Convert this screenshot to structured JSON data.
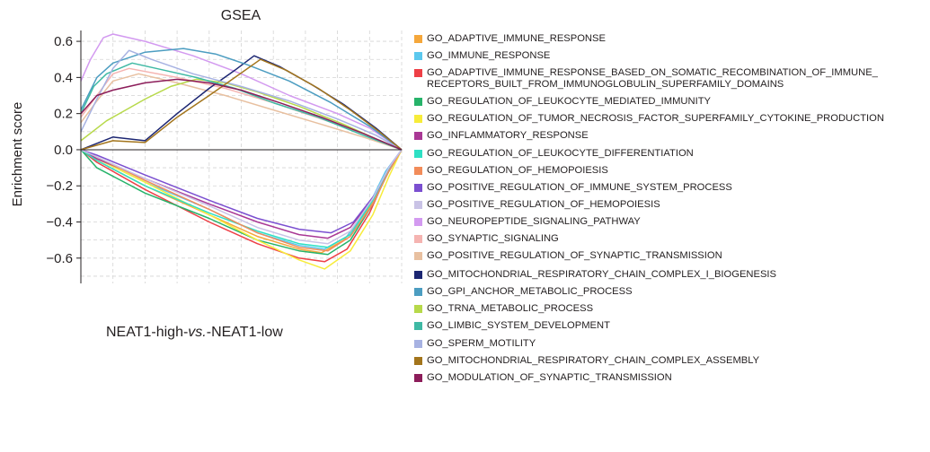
{
  "chart_data": {
    "type": "line",
    "title": "GSEA",
    "xlabel": "",
    "ylabel": "Enrichment score",
    "ylim": [
      -0.74,
      0.66
    ],
    "yticks": [
      -0.6,
      -0.4,
      -0.2,
      0.0,
      0.2,
      0.4,
      0.6
    ],
    "ytick_labels": [
      "−0.6",
      "−0.4",
      "−0.2",
      "0.0",
      "0.2",
      "0.4",
      "0.6"
    ],
    "x_range": [
      0,
      1
    ],
    "grid": true,
    "legend_position": "right",
    "comparison": {
      "before": "NEAT1-high-",
      "italic": "vs.",
      "after": "-NEAT1-low"
    },
    "series": [
      {
        "name": "GO_ADAPTIVE_IMMUNE_RESPONSE",
        "color": "#f5a73b",
        "points": [
          [
            0,
            0
          ],
          [
            0.05,
            -0.06
          ],
          [
            0.2,
            -0.2
          ],
          [
            0.4,
            -0.36
          ],
          [
            0.55,
            -0.48
          ],
          [
            0.68,
            -0.55
          ],
          [
            0.75,
            -0.57
          ],
          [
            0.82,
            -0.5
          ],
          [
            0.9,
            -0.32
          ],
          [
            0.95,
            -0.14
          ],
          [
            1,
            0
          ]
        ]
      },
      {
        "name": "GO_IMMUNE_RESPONSE",
        "color": "#5bc8ee",
        "points": [
          [
            0,
            0
          ],
          [
            0.05,
            -0.05
          ],
          [
            0.2,
            -0.18
          ],
          [
            0.4,
            -0.33
          ],
          [
            0.55,
            -0.46
          ],
          [
            0.68,
            -0.53
          ],
          [
            0.76,
            -0.55
          ],
          [
            0.83,
            -0.48
          ],
          [
            0.9,
            -0.3
          ],
          [
            0.95,
            -0.12
          ],
          [
            1,
            0
          ]
        ]
      },
      {
        "name": "GO_ADAPTIVE_IMMUNE_RESPONSE_BASED_ON_SOMATIC_RECOMBINATION_OF_IMMUNE_\nRECEPTORS_BUILT_FROM_IMMUNOGLOBULIN_SUPERFAMILY_DOMAINS",
        "color": "#ee3f46",
        "points": [
          [
            0,
            0
          ],
          [
            0.05,
            -0.07
          ],
          [
            0.2,
            -0.22
          ],
          [
            0.4,
            -0.4
          ],
          [
            0.55,
            -0.52
          ],
          [
            0.68,
            -0.6
          ],
          [
            0.76,
            -0.62
          ],
          [
            0.83,
            -0.55
          ],
          [
            0.9,
            -0.35
          ],
          [
            0.95,
            -0.15
          ],
          [
            1,
            0
          ]
        ]
      },
      {
        "name": "GO_REGULATION_OF_LEUKOCYTE_MEDIATED_IMMUNITY",
        "color": "#27b36a",
        "points": [
          [
            0,
            0
          ],
          [
            0.05,
            -0.1
          ],
          [
            0.2,
            -0.24
          ],
          [
            0.4,
            -0.38
          ],
          [
            0.55,
            -0.5
          ],
          [
            0.68,
            -0.56
          ],
          [
            0.77,
            -0.58
          ],
          [
            0.84,
            -0.5
          ],
          [
            0.91,
            -0.3
          ],
          [
            0.96,
            -0.12
          ],
          [
            1,
            0
          ]
        ]
      },
      {
        "name": "GO_REGULATION_OF_TUMOR_NECROSIS_FACTOR_SUPERFAMILY_CYTOKINE_PRODUCTION",
        "color": "#f7ec3a",
        "points": [
          [
            0,
            0
          ],
          [
            0.05,
            -0.05
          ],
          [
            0.2,
            -0.18
          ],
          [
            0.4,
            -0.36
          ],
          [
            0.55,
            -0.5
          ],
          [
            0.68,
            -0.61
          ],
          [
            0.76,
            -0.66
          ],
          [
            0.84,
            -0.56
          ],
          [
            0.91,
            -0.36
          ],
          [
            0.96,
            -0.15
          ],
          [
            1,
            0
          ]
        ]
      },
      {
        "name": "GO_INFLAMMATORY_RESPONSE",
        "color": "#a93895",
        "points": [
          [
            0,
            0
          ],
          [
            0.05,
            -0.05
          ],
          [
            0.2,
            -0.16
          ],
          [
            0.4,
            -0.3
          ],
          [
            0.55,
            -0.4
          ],
          [
            0.68,
            -0.47
          ],
          [
            0.77,
            -0.49
          ],
          [
            0.84,
            -0.43
          ],
          [
            0.91,
            -0.27
          ],
          [
            0.96,
            -0.11
          ],
          [
            1,
            0
          ]
        ]
      },
      {
        "name": "GO_REGULATION_OF_LEUKOCYTE_DIFFERENTIATION",
        "color": "#2ee0c4",
        "points": [
          [
            0,
            0
          ],
          [
            0.05,
            -0.06
          ],
          [
            0.2,
            -0.2
          ],
          [
            0.4,
            -0.35
          ],
          [
            0.55,
            -0.45
          ],
          [
            0.68,
            -0.52
          ],
          [
            0.77,
            -0.54
          ],
          [
            0.84,
            -0.47
          ],
          [
            0.91,
            -0.28
          ],
          [
            0.96,
            -0.11
          ],
          [
            1,
            0
          ]
        ]
      },
      {
        "name": "GO_REGULATION_OF_HEMOPOIESIS",
        "color": "#f28c5a",
        "points": [
          [
            0,
            0
          ],
          [
            0.05,
            -0.04
          ],
          [
            0.2,
            -0.17
          ],
          [
            0.4,
            -0.33
          ],
          [
            0.55,
            -0.46
          ],
          [
            0.68,
            -0.54
          ],
          [
            0.77,
            -0.56
          ],
          [
            0.84,
            -0.48
          ],
          [
            0.91,
            -0.3
          ],
          [
            0.96,
            -0.12
          ],
          [
            1,
            0
          ]
        ]
      },
      {
        "name": "GO_POSITIVE_REGULATION_OF_IMMUNE_SYSTEM_PROCESS",
        "color": "#7b4fd0",
        "points": [
          [
            0,
            0
          ],
          [
            0.05,
            -0.03
          ],
          [
            0.2,
            -0.14
          ],
          [
            0.4,
            -0.28
          ],
          [
            0.55,
            -0.38
          ],
          [
            0.68,
            -0.44
          ],
          [
            0.78,
            -0.46
          ],
          [
            0.85,
            -0.4
          ],
          [
            0.92,
            -0.24
          ],
          [
            0.96,
            -0.1
          ],
          [
            1,
            0
          ]
        ]
      },
      {
        "name": "GO_POSITIVE_REGULATION_OF_HEMOPOIESIS",
        "color": "#c9c3e6",
        "points": [
          [
            0,
            0
          ],
          [
            0.05,
            -0.04
          ],
          [
            0.2,
            -0.16
          ],
          [
            0.4,
            -0.31
          ],
          [
            0.55,
            -0.43
          ],
          [
            0.68,
            -0.5
          ],
          [
            0.77,
            -0.52
          ],
          [
            0.84,
            -0.45
          ],
          [
            0.91,
            -0.27
          ],
          [
            0.96,
            -0.1
          ],
          [
            1,
            0
          ]
        ]
      },
      {
        "name": "GO_NEUROPEPTIDE_SIGNALING_PATHWAY",
        "color": "#d39af0",
        "points": [
          [
            0,
            0.38
          ],
          [
            0.03,
            0.5
          ],
          [
            0.07,
            0.62
          ],
          [
            0.1,
            0.64
          ],
          [
            0.2,
            0.6
          ],
          [
            0.35,
            0.52
          ],
          [
            0.5,
            0.42
          ],
          [
            0.65,
            0.3
          ],
          [
            0.8,
            0.2
          ],
          [
            0.9,
            0.12
          ],
          [
            1,
            0
          ]
        ]
      },
      {
        "name": "GO_SYNAPTIC_SIGNALING",
        "color": "#f5b4b1",
        "points": [
          [
            0,
            0.18
          ],
          [
            0.05,
            0.3
          ],
          [
            0.1,
            0.42
          ],
          [
            0.15,
            0.45
          ],
          [
            0.3,
            0.4
          ],
          [
            0.45,
            0.34
          ],
          [
            0.6,
            0.26
          ],
          [
            0.75,
            0.17
          ],
          [
            0.88,
            0.09
          ],
          [
            1,
            0
          ]
        ]
      },
      {
        "name": "GO_POSITIVE_REGULATION_OF_SYNAPTIC_TRANSMISSION",
        "color": "#e8c0a0",
        "points": [
          [
            0,
            0.15
          ],
          [
            0.05,
            0.27
          ],
          [
            0.1,
            0.38
          ],
          [
            0.18,
            0.42
          ],
          [
            0.3,
            0.37
          ],
          [
            0.45,
            0.3
          ],
          [
            0.6,
            0.22
          ],
          [
            0.75,
            0.14
          ],
          [
            0.88,
            0.07
          ],
          [
            1,
            0
          ]
        ]
      },
      {
        "name": "GO_MITOCHONDRIAL_RESPIRATORY_CHAIN_COMPLEX_I_BIOGENESIS",
        "color": "#1c2672",
        "points": [
          [
            0,
            0
          ],
          [
            0.1,
            0.07
          ],
          [
            0.2,
            0.05
          ],
          [
            0.3,
            0.2
          ],
          [
            0.4,
            0.34
          ],
          [
            0.48,
            0.44
          ],
          [
            0.54,
            0.52
          ],
          [
            0.62,
            0.46
          ],
          [
            0.72,
            0.36
          ],
          [
            0.82,
            0.25
          ],
          [
            0.92,
            0.12
          ],
          [
            1,
            0
          ]
        ]
      },
      {
        "name": "GO_GPI_ANCHOR_METABOLIC_PROCESS",
        "color": "#4c9dc1",
        "points": [
          [
            0,
            0.22
          ],
          [
            0.05,
            0.4
          ],
          [
            0.1,
            0.48
          ],
          [
            0.2,
            0.54
          ],
          [
            0.32,
            0.56
          ],
          [
            0.42,
            0.53
          ],
          [
            0.52,
            0.47
          ],
          [
            0.65,
            0.38
          ],
          [
            0.78,
            0.26
          ],
          [
            0.9,
            0.13
          ],
          [
            1,
            0
          ]
        ]
      },
      {
        "name": "GO_TRNA_METABOLIC_PROCESS",
        "color": "#b7d94a",
        "points": [
          [
            0,
            0.05
          ],
          [
            0.08,
            0.16
          ],
          [
            0.14,
            0.22
          ],
          [
            0.2,
            0.28
          ],
          [
            0.28,
            0.35
          ],
          [
            0.36,
            0.39
          ],
          [
            0.45,
            0.37
          ],
          [
            0.55,
            0.32
          ],
          [
            0.68,
            0.24
          ],
          [
            0.82,
            0.14
          ],
          [
            0.92,
            0.06
          ],
          [
            1,
            0
          ]
        ]
      },
      {
        "name": "GO_LIMBIC_SYSTEM_DEVELOPMENT",
        "color": "#3fb9a4",
        "points": [
          [
            0,
            0.2
          ],
          [
            0.04,
            0.35
          ],
          [
            0.08,
            0.42
          ],
          [
            0.16,
            0.48
          ],
          [
            0.26,
            0.44
          ],
          [
            0.36,
            0.4
          ],
          [
            0.48,
            0.34
          ],
          [
            0.6,
            0.26
          ],
          [
            0.74,
            0.18
          ],
          [
            0.88,
            0.08
          ],
          [
            1,
            0
          ]
        ]
      },
      {
        "name": "GO_SPERM_MOTILITY",
        "color": "#a7b2e2",
        "points": [
          [
            0,
            0.1
          ],
          [
            0.05,
            0.28
          ],
          [
            0.1,
            0.45
          ],
          [
            0.15,
            0.55
          ],
          [
            0.22,
            0.5
          ],
          [
            0.35,
            0.42
          ],
          [
            0.5,
            0.35
          ],
          [
            0.65,
            0.27
          ],
          [
            0.8,
            0.17
          ],
          [
            0.92,
            0.08
          ],
          [
            1,
            0
          ]
        ]
      },
      {
        "name": "GO_MITOCHONDRIAL_RESPIRATORY_CHAIN_COMPLEX_ASSEMBLY",
        "color": "#a3751c",
        "points": [
          [
            0,
            0
          ],
          [
            0.1,
            0.05
          ],
          [
            0.2,
            0.04
          ],
          [
            0.3,
            0.18
          ],
          [
            0.4,
            0.3
          ],
          [
            0.48,
            0.4
          ],
          [
            0.56,
            0.5
          ],
          [
            0.64,
            0.44
          ],
          [
            0.74,
            0.34
          ],
          [
            0.84,
            0.22
          ],
          [
            0.93,
            0.1
          ],
          [
            1,
            0
          ]
        ]
      },
      {
        "name": "GO_MODULATION_OF_SYNAPTIC_TRANSMISSION",
        "color": "#8c1d5a",
        "points": [
          [
            0,
            0.2
          ],
          [
            0.05,
            0.3
          ],
          [
            0.1,
            0.33
          ],
          [
            0.2,
            0.37
          ],
          [
            0.3,
            0.39
          ],
          [
            0.4,
            0.37
          ],
          [
            0.5,
            0.33
          ],
          [
            0.62,
            0.26
          ],
          [
            0.75,
            0.18
          ],
          [
            0.88,
            0.09
          ],
          [
            1,
            0
          ]
        ]
      }
    ]
  }
}
